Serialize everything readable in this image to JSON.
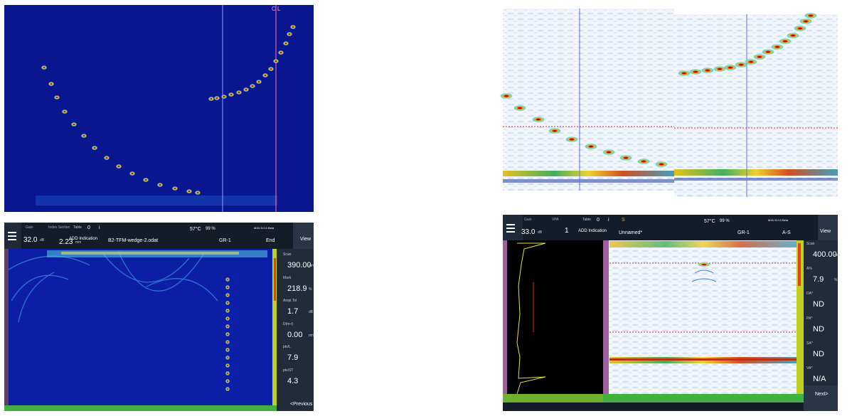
{
  "top_left": {
    "marker_label": "C L"
  },
  "bottom_left": {
    "toolbar": {
      "gain_label": "Gain",
      "gain": "32.0",
      "gain_unit": "dB",
      "index_label": "Index Section",
      "index": "2.23",
      "index_unit": "mm",
      "table_label": "Table",
      "table_count": "0",
      "info": "i",
      "temperature": "57°C",
      "battery": "99 %",
      "version": "MXU 5.0.0 Beta",
      "add_indication": "ADD Indication",
      "file": "B2-TFM-wedge-2.odat",
      "group": "GR-1",
      "layout": "End",
      "view": "View"
    },
    "readings": [
      {
        "label": "Scan",
        "value": "390.00",
        "unit": "mm"
      },
      {
        "label": "Mark",
        "value": "218.9",
        "unit": "%"
      },
      {
        "label": "Ampl.Tol",
        "value": "1.7",
        "unit": "dB"
      },
      {
        "label": "D(m-r)",
        "value": "0.00",
        "unit": "mm"
      },
      {
        "label": "ptv/L",
        "value": "7.9",
        "unit": ""
      },
      {
        "label": "ptv/ST",
        "value": "4.3",
        "unit": ""
      }
    ],
    "nav_button": "<Previous"
  },
  "bottom_right": {
    "toolbar": {
      "gain_label": "Gain",
      "gain": "33.0",
      "gain_unit": "dB",
      "vpa_label": "VPA",
      "vpa": "1",
      "table_label": "Table",
      "table_count": "0",
      "info": "i",
      "status": "S",
      "temperature": "57°C",
      "battery": "99 %",
      "version": "MXU 5.0.0 Beta",
      "add_indication": "ADD Indication",
      "file": "Unnamed*",
      "group": "GR-1",
      "layout": "A-S",
      "view": "View"
    },
    "readings": [
      {
        "label": "Scan",
        "value": "400.00",
        "unit": "mm"
      },
      {
        "label": "A%",
        "value": "7.9",
        "unit": "%"
      },
      {
        "label": "DA^",
        "value": "ND",
        "unit": ""
      },
      {
        "label": "PA^",
        "value": "ND",
        "unit": ""
      },
      {
        "label": "SA^",
        "value": "ND",
        "unit": ""
      },
      {
        "label": "VA^",
        "value": "N/A",
        "unit": ""
      }
    ],
    "nav_button": "Next>"
  }
}
